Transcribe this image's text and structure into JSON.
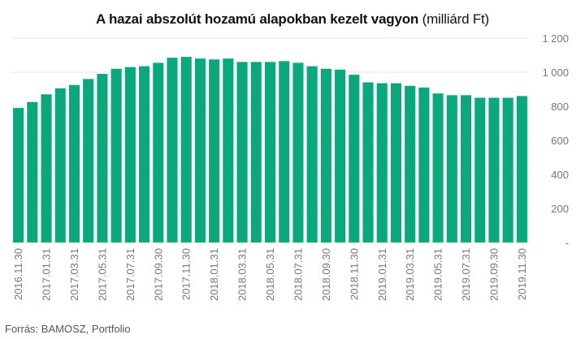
{
  "header": {
    "title_main": "A hazai abszolút hozamú alapokban kezelt vagyon",
    "title_unit": "(milliárd Ft)"
  },
  "footer": {
    "source": "Forrás: BAMOSZ, Portfolio"
  },
  "colors": {
    "bar": "#0aa87c",
    "grid": "#e4e4e4",
    "axis_text": "#777777"
  },
  "chart_data": {
    "type": "bar",
    "title": "A hazai abszolút hozamú alapokban kezelt vagyon (milliárd Ft)",
    "ylim": [
      0,
      1200
    ],
    "y_ticks": [
      0,
      200,
      400,
      600,
      800,
      1000,
      1200
    ],
    "y_tick_labels": [
      "-",
      "200",
      "400",
      "600",
      "800",
      "1 000",
      "1 200"
    ],
    "y_axis_position": "right",
    "grid": true,
    "categories": [
      "2016.11.30",
      "2016.12.31",
      "2017.01.31",
      "2017.02.28",
      "2017.03.31",
      "2017.04.30",
      "2017.05.31",
      "2017.06.30",
      "2017.07.31",
      "2017.08.31",
      "2017.09.30",
      "2017.10.31",
      "2017.11.30",
      "2017.12.31",
      "2018.01.31",
      "2018.02.28",
      "2018.03.31",
      "2018.04.30",
      "2018.05.31",
      "2018.06.30",
      "2018.07.31",
      "2018.08.31",
      "2018.09.30",
      "2018.10.31",
      "2018.11.30",
      "2018.12.31",
      "2019.01.31",
      "2019.02.28",
      "2019.03.31",
      "2019.04.30",
      "2019.05.31",
      "2019.06.30",
      "2019.07.31",
      "2019.08.31",
      "2019.09.30",
      "2019.10.31",
      "2019.11.30"
    ],
    "shown_labels": [
      "2016.11.30",
      "2017.01.31",
      "2017.03.31",
      "2017.05.31",
      "2017.07.31",
      "2017.09.30",
      "2017.11.30",
      "2018.01.31",
      "2018.03.31",
      "2018.05.31",
      "2018.07.31",
      "2018.09.30",
      "2018.11.30",
      "2019.01.31",
      "2019.03.31",
      "2019.05.31",
      "2019.07.31",
      "2019.09.30",
      "2019.11.30"
    ],
    "values": [
      790,
      825,
      870,
      905,
      925,
      960,
      990,
      1020,
      1030,
      1035,
      1055,
      1085,
      1090,
      1080,
      1075,
      1080,
      1060,
      1060,
      1060,
      1065,
      1055,
      1035,
      1020,
      1015,
      985,
      940,
      935,
      935,
      920,
      910,
      875,
      865,
      865,
      850,
      850,
      850,
      860
    ]
  }
}
